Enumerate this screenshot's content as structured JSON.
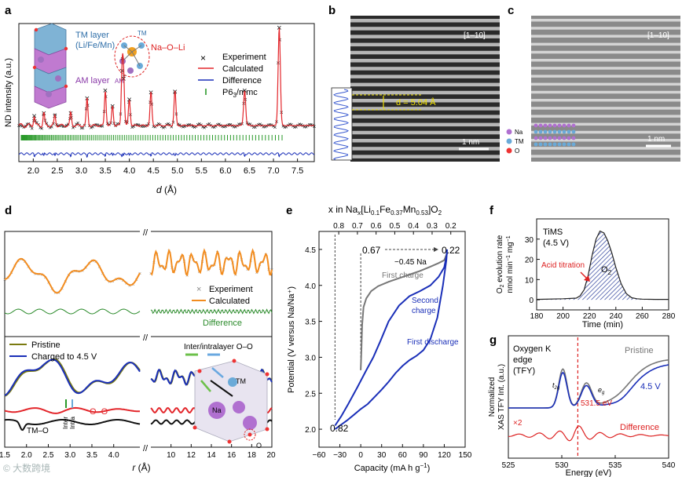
{
  "panel_letters": {
    "a": "a",
    "b": "b",
    "c": "c",
    "d": "d",
    "e": "e",
    "f": "f",
    "g": "g"
  },
  "watermark": "© 大数跨境",
  "colors": {
    "experiment": "#111111",
    "calculated": "#e3262b",
    "difference_a": "#1a2fb8",
    "bragg": "#2a9a2a",
    "orange": "#f28c1f",
    "green_diff": "#2a8a2a",
    "pristine": "#7a7a10",
    "charged": "#1a2fb8",
    "e_first": "#777777",
    "e_second": "#1a2fb8",
    "yellow": "#f0e000",
    "f_fill": "#2a3d9a"
  },
  "a": {
    "ylabel": "ND intensity (a.u.)",
    "xlabel_sym": "d",
    "xlabel_unit": " (Å)",
    "tm_layer_line1": "TM layer",
    "tm_layer_line2": "(Li/Fe/Mn)",
    "am_layer": "AM layer",
    "tm_small": "TM",
    "am_small": "AM",
    "na_o_li": "Na–O–Li",
    "legend": {
      "experiment": "Experiment",
      "calculated": "Calculated",
      "difference": "Difference",
      "space_group": "P6",
      "space_group_sub": "3",
      "space_group_tail": "/mmc"
    }
  },
  "b": {
    "zone": "[1–10]",
    "d_label": "d = 5.04 Å",
    "scale": "1 nm"
  },
  "c": {
    "zone": "[1–10]",
    "scale": "1 nm",
    "legend": [
      "Na",
      "TM",
      "O"
    ]
  },
  "d": {
    "legend_top": {
      "experiment": "Experiment",
      "calculated": "Calculated",
      "difference": "Difference"
    },
    "legend_bottom": {
      "pristine": "Pristine",
      "charged": "Charged to 4.5 V"
    },
    "oo_label": "O–O",
    "tmo_label": "TM–O",
    "inter": "Inter",
    "intra": "Intra",
    "inter_intra_title": "Inter/intralayer O–O",
    "tm": "TM",
    "na": "Na",
    "o": "O",
    "xlabel_sym": "r",
    "xlabel_unit": " (Å)"
  },
  "e": {
    "top_title_parts": {
      "p1": "x in Na",
      "p2": "x",
      "p3": "[Li",
      "p4": "0.1",
      "p5": "Fe",
      "p6": "0.37",
      "p7": "Mn",
      "p8": "0.53",
      "p9": "]O",
      "p10": "2"
    },
    "ylabel": "Potential (V versus Na/Na⁺)",
    "xlabel": "Capacity (mA h g",
    "xlabel_sup": "−1",
    "xlabel_tail": ")",
    "ann_067": "0.67",
    "ann_022": "0.22",
    "ann_045": "−0.45 Na",
    "ann_082": "0.82",
    "first_charge": "First charge",
    "second_charge_1": "Second",
    "second_charge_2": "charge",
    "first_discharge": "First discharge"
  },
  "f": {
    "title1": "TiMS",
    "title2": "(4.5 V)",
    "acid": "Acid titration",
    "o2": "O",
    "o2_sub": "2",
    "ylabel1": "O",
    "ylabel1_sub": "2",
    "ylabel1_tail": " evolution rate",
    "ylabel2": "nmol min",
    "ylabel2_sup1": "−1",
    "ylabel2_mid": " mg",
    "ylabel2_sup2": "−1",
    "xlabel": "Time (min)"
  },
  "g": {
    "title1": "Oxygen K",
    "title2": "edge",
    "title3": "(TFY)",
    "pristine": "Pristine",
    "v45": "4.5 V",
    "t2g": "t",
    "t2g_sub": "2g",
    "eg": "e",
    "eg_sub": "g",
    "ev": "531.5 eV",
    "x2": "×2",
    "difference": "Difference",
    "ylabel1": "Normalized",
    "ylabel2": "XAS TFY Int. (a.u.)",
    "xlabel": "Energy (eV)"
  },
  "chart_data": [
    {
      "panel": "a",
      "type": "line",
      "xlabel": "d (Å)",
      "ylabel": "ND intensity (a.u.)",
      "xlim": [
        1.7,
        7.85
      ],
      "x_ticks": [
        2.0,
        2.5,
        3.0,
        3.5,
        4.0,
        4.5,
        5.0,
        5.5,
        6.0,
        6.5,
        7.0,
        7.5
      ],
      "peaks_d": [
        2.02,
        2.22,
        2.45,
        2.78,
        3.12,
        3.5,
        3.65,
        3.85,
        3.88,
        4.0,
        4.45,
        4.95,
        6.4,
        7.12
      ],
      "peaks_intensity": [
        0.1,
        0.13,
        0.1,
        0.13,
        0.28,
        0.36,
        0.2,
        0.56,
        0.48,
        0.27,
        0.34,
        0.35,
        0.36,
        1.0
      ],
      "series": [
        {
          "name": "Experiment"
        },
        {
          "name": "Calculated"
        },
        {
          "name": "Difference"
        },
        {
          "name": "P63/mmc"
        }
      ]
    },
    {
      "panel": "d",
      "type": "line",
      "xlabel": "r (Å)",
      "x_ticks": [
        1.5,
        2.0,
        2.5,
        3.0,
        3.5,
        4.0,
        10,
        12,
        14,
        16,
        18,
        20
      ],
      "series": [
        {
          "name": "Experiment"
        },
        {
          "name": "Calculated"
        },
        {
          "name": "Difference"
        },
        {
          "name": "Pristine"
        },
        {
          "name": "Charged to 4.5 V"
        }
      ]
    },
    {
      "panel": "e",
      "type": "line",
      "xlabel": "Capacity (mA h g−1)",
      "ylabel": "Potential (V versus Na/Na+)",
      "xlim": [
        -60,
        150
      ],
      "ylim": [
        1.75,
        4.75
      ],
      "x_ticks": [
        -60,
        -30,
        0,
        30,
        60,
        90,
        120,
        150
      ],
      "y_ticks": [
        2.0,
        2.5,
        3.0,
        3.5,
        4.0,
        4.5
      ],
      "top_axis_ticks": [
        0.8,
        0.7,
        0.6,
        0.5,
        0.4,
        0.3,
        0.2
      ],
      "series": [
        {
          "name": "First charge",
          "x": [
            0,
            1,
            2,
            4,
            8,
            15,
            25,
            40,
            55,
            70,
            85,
            100,
            112,
            120,
            124
          ],
          "y": [
            2.82,
            3.1,
            3.45,
            3.7,
            3.82,
            3.92,
            3.99,
            4.05,
            4.1,
            4.15,
            4.2,
            4.26,
            4.31,
            4.35,
            4.45
          ]
        },
        {
          "name": "Second charge",
          "x": [
            -37,
            -28,
            -18,
            -5,
            8,
            18,
            28,
            40,
            55,
            70,
            85,
            100,
            112,
            120,
            124
          ],
          "y": [
            2.05,
            2.18,
            2.35,
            2.58,
            2.82,
            3.0,
            3.22,
            3.5,
            3.72,
            3.85,
            3.92,
            4.0,
            4.12,
            4.25,
            4.45
          ]
        },
        {
          "name": "First discharge",
          "x": [
            124,
            123,
            118,
            110,
            100,
            90,
            80,
            70,
            60,
            50,
            40,
            30,
            20,
            10,
            0,
            -10,
            -20,
            -30,
            -37
          ],
          "y": [
            4.5,
            4.35,
            4.0,
            3.55,
            3.25,
            3.1,
            3.02,
            2.96,
            2.88,
            2.78,
            2.66,
            2.55,
            2.45,
            2.35,
            2.28,
            2.2,
            2.12,
            2.05,
            2.0
          ]
        }
      ]
    },
    {
      "panel": "f",
      "type": "area",
      "xlabel": "Time (min)",
      "ylabel": "O2 evolution rate nmol min−1 mg−1",
      "xlim": [
        180,
        280
      ],
      "ylim": [
        -5,
        40
      ],
      "x_ticks": [
        180,
        200,
        220,
        240,
        260,
        280
      ],
      "y_ticks": [
        0,
        10,
        20,
        30
      ],
      "series": [
        {
          "name": "O2",
          "x": [
            180,
            200,
            210,
            213,
            216,
            219,
            222,
            225,
            228,
            231,
            234,
            237,
            240,
            244,
            248,
            252,
            256,
            260,
            270,
            280
          ],
          "y": [
            0.2,
            0.5,
            0.8,
            2,
            5,
            12,
            22,
            30,
            34,
            33,
            29,
            23,
            16,
            8,
            3,
            1,
            0.5,
            0.3,
            0.2,
            0.2
          ]
        }
      ]
    },
    {
      "panel": "g",
      "type": "line",
      "xlabel": "Energy (eV)",
      "ylabel": "Normalized XAS TFY Int. (a.u.)",
      "xlim": [
        525,
        540
      ],
      "x_ticks": [
        525,
        530,
        535,
        540
      ],
      "marker_ev": 531.5,
      "series": [
        {
          "name": "Pristine"
        },
        {
          "name": "4.5 V"
        },
        {
          "name": "Difference"
        }
      ]
    }
  ]
}
